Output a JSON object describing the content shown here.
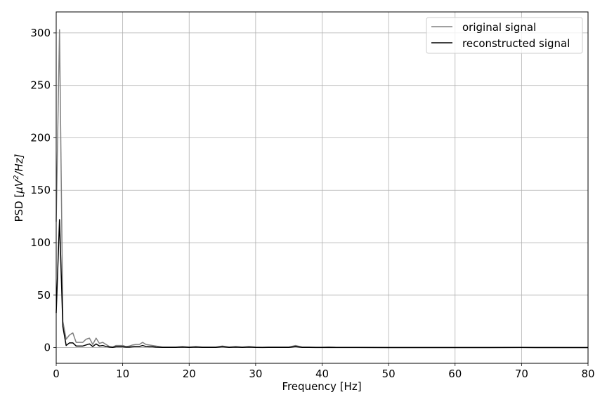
{
  "chart_data": {
    "type": "line",
    "xlabel": "Frequency [Hz]",
    "ylabel_parts": {
      "prefix": "PSD [",
      "mu": "μ",
      "v": "V",
      "sup": "2",
      "suffix": "/Hz]"
    },
    "xlim": [
      0,
      80
    ],
    "ylim": [
      -15,
      320
    ],
    "xticks": [
      0,
      10,
      20,
      30,
      40,
      50,
      60,
      70,
      80
    ],
    "yticks": [
      0,
      50,
      100,
      150,
      200,
      250,
      300
    ],
    "grid": true,
    "legend_position": "top-right",
    "series": [
      {
        "name": "original signal",
        "color": "#808080",
        "x": [
          0,
          0.5,
          1,
          1.5,
          2,
          2.5,
          3,
          3.5,
          4,
          4.5,
          5,
          5.5,
          6,
          6.5,
          7,
          7.5,
          8,
          8.5,
          9,
          9.5,
          10,
          10.5,
          11,
          11.5,
          12,
          12.5,
          13,
          13.5,
          14,
          14.5,
          15,
          16,
          17,
          18,
          19,
          20,
          21,
          22,
          23,
          24,
          25,
          26,
          27,
          28,
          29,
          30,
          31,
          32,
          33,
          34,
          35,
          36,
          37,
          38,
          39,
          40,
          41,
          42,
          45,
          50,
          55,
          60,
          65,
          70,
          75,
          80
        ],
        "y": [
          120,
          303,
          25,
          8,
          12,
          14,
          5,
          5,
          5,
          8,
          9,
          3,
          9,
          4,
          5,
          3,
          1,
          0.5,
          2,
          2,
          2,
          1,
          1.5,
          2.5,
          3,
          3,
          5,
          3,
          2.5,
          2,
          1.5,
          0.5,
          0.5,
          0.5,
          1,
          0.5,
          1,
          0.5,
          0.5,
          0.5,
          1.5,
          0.5,
          1,
          0.5,
          1,
          0.5,
          0.3,
          0.5,
          0.5,
          0.5,
          0.5,
          2,
          0.5,
          0.5,
          0.3,
          0.3,
          0.5,
          0.3,
          0.2,
          0.1,
          0.1,
          0.1,
          0.1,
          0.2,
          0.1,
          0.05
        ]
      },
      {
        "name": "reconstructed signal",
        "color": "#000000",
        "x": [
          0,
          0.5,
          1,
          1.5,
          2,
          2.5,
          3,
          3.5,
          4,
          4.5,
          5,
          5.5,
          6,
          6.5,
          7,
          7.5,
          8,
          8.5,
          9,
          9.5,
          10,
          10.5,
          11,
          11.5,
          12,
          12.5,
          13,
          13.5,
          14,
          14.5,
          15,
          16,
          17,
          18,
          19,
          20,
          21,
          22,
          23,
          24,
          25,
          26,
          27,
          28,
          29,
          30,
          31,
          32,
          33,
          34,
          35,
          36,
          37,
          38,
          39,
          40,
          41,
          42,
          45,
          50,
          55,
          60,
          65,
          70,
          75,
          80
        ],
        "y": [
          33,
          122,
          20,
          2,
          4.5,
          4.5,
          1.5,
          1.5,
          1.5,
          2.5,
          3.5,
          1,
          3.5,
          1.5,
          2,
          1,
          0.5,
          0.2,
          0.8,
          0.8,
          0.8,
          0.5,
          0.5,
          0.8,
          1,
          1,
          2,
          1,
          0.8,
          0.8,
          0.5,
          0.2,
          0.2,
          0.2,
          0.5,
          0.2,
          0.5,
          0.2,
          0.2,
          0.2,
          0.8,
          0.2,
          0.5,
          0.2,
          0.5,
          0.2,
          0.1,
          0.2,
          0.2,
          0.2,
          0.2,
          1,
          0.2,
          0.2,
          0.1,
          0.1,
          0.2,
          0.1,
          0.1,
          0.05,
          0.05,
          0.05,
          0.05,
          0.1,
          0.05,
          0.02
        ]
      }
    ]
  }
}
